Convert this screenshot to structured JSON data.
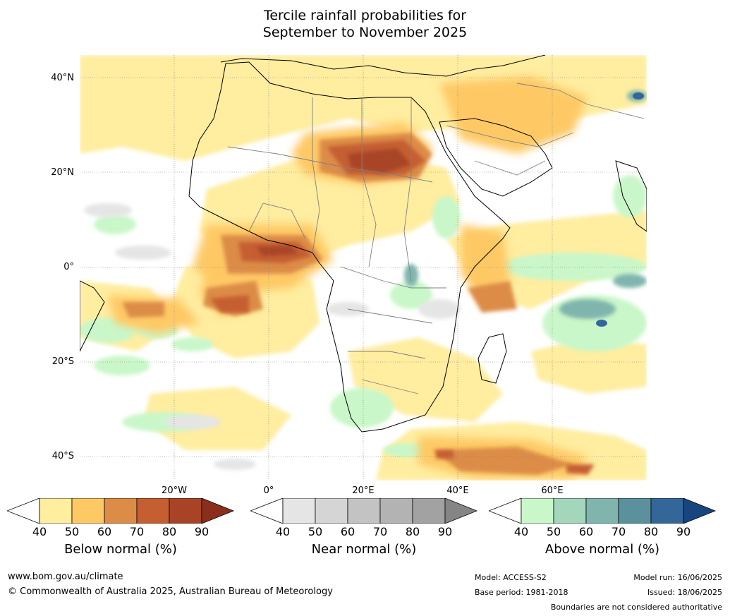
{
  "header": {
    "title_line1": "Tercile rainfall probabilities for",
    "title_line2": "September to November 2025"
  },
  "axes": {
    "lat_labels": [
      "40°N",
      "20°N",
      "0°",
      "20°S",
      "40°S"
    ],
    "lon_labels": [
      "20°W",
      "0°",
      "20°E",
      "40°E",
      "60°E"
    ],
    "lat_range": [
      -45,
      45
    ],
    "lon_range": [
      -40,
      80
    ],
    "grid": true
  },
  "colorbars": [
    {
      "title": "Below normal (%)",
      "ticks": [
        "40",
        "50",
        "60",
        "70",
        "80",
        "90"
      ],
      "colors": [
        "#ffffff",
        "#ffeda0",
        "#fec965",
        "#dc8c46",
        "#c55f32",
        "#a84425",
        "#8b2e1c"
      ]
    },
    {
      "title": "Near normal (%)",
      "ticks": [
        "40",
        "50",
        "60",
        "70",
        "80",
        "90"
      ],
      "colors": [
        "#ffffff",
        "#e5e5e5",
        "#d5d5d5",
        "#c3c3c3",
        "#b3b3b3",
        "#a2a2a2",
        "#858585"
      ]
    },
    {
      "title": "Above normal (%)",
      "ticks": [
        "40",
        "50",
        "60",
        "70",
        "80",
        "90"
      ],
      "colors": [
        "#ffffff",
        "#c9f7c9",
        "#a3d6bb",
        "#7fb5ad",
        "#5a919d",
        "#33679a",
        "#17467f"
      ]
    }
  ],
  "footer": {
    "website": "www.bom.gov.au/climate",
    "copyright": "© Commonwealth of Australia 2025, Australian Bureau of Meteorology",
    "model": "Model: ACCESS-S2",
    "base_period": "Base period: 1981-2018",
    "model_run": "Model run: 16/06/2025",
    "issued": "Issued: 18/06/2025",
    "disclaimer": "Boundaries are not considered authoritative"
  }
}
